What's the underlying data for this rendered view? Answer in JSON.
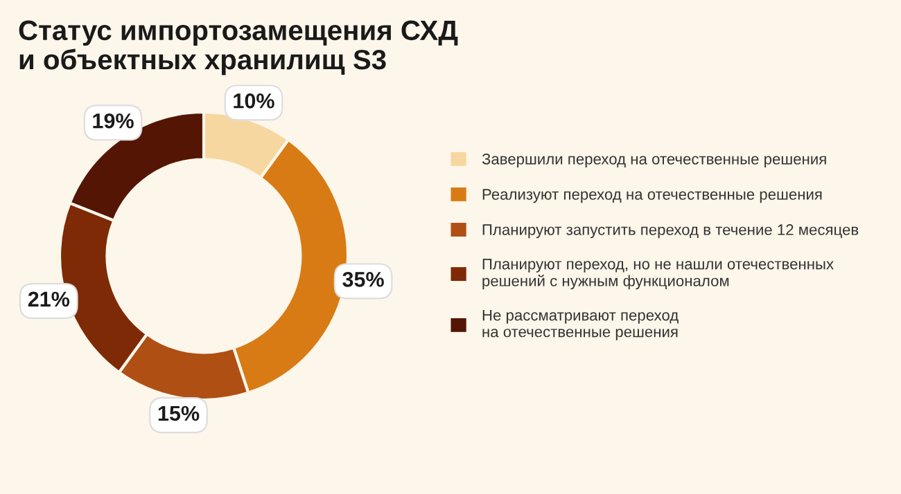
{
  "chart_data": {
    "type": "donut",
    "title": "Статус импортозамещения СХД\nи объектных хранилищ S3",
    "categories": [
      "Завершили переход на отечественные решения",
      "Реализуют переход на отечественные решения",
      "Планируют запустить переход в течение 12 месяцев",
      "Планируют переход, но не нашли отечественных\nрешений с нужным функционалом",
      "Не рассматривают переход\nна отечественные решения"
    ],
    "values": [
      10,
      35,
      15,
      21,
      19
    ],
    "colors": [
      "#f7d7a0",
      "#d97b14",
      "#b04f14",
      "#7e2a06",
      "#541505"
    ],
    "value_labels": [
      "10%",
      "35%",
      "15%",
      "21%",
      "19%"
    ],
    "legend": "right"
  }
}
